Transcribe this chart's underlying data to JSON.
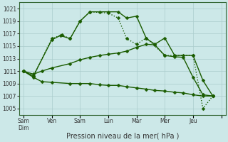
{
  "xlabel": "Pression niveau de la mer( hPa )",
  "background_color": "#cce8e8",
  "grid_color": "#aacccc",
  "line_color": "#1a5c00",
  "ylim": [
    1004,
    1022
  ],
  "yticks": [
    1005,
    1007,
    1009,
    1011,
    1013,
    1015,
    1017,
    1019,
    1021
  ],
  "xlim": [
    -0.15,
    7.15
  ],
  "x_tick_positions": [
    0,
    1,
    2,
    3,
    4,
    5,
    6,
    7
  ],
  "x_tick_labels": [
    "Sam\nDim",
    "Ven",
    "Sam",
    "Lun",
    "Mar",
    "Mer",
    "Jeu",
    ""
  ],
  "line1_x": [
    0,
    0.35,
    1.0,
    1.3,
    1.65,
    2.0,
    2.35,
    2.7,
    3.0,
    3.35,
    3.65,
    4.0,
    4.35,
    4.65,
    5.0,
    5.35,
    5.65,
    6.0,
    6.35,
    6.7
  ],
  "line1_y": [
    1011,
    1010.2,
    1016,
    1016.7,
    1016.2,
    1019.0,
    1020.5,
    1020.5,
    1020.5,
    1020.5,
    1019.5,
    1019.8,
    1016.2,
    1015.3,
    1016.3,
    1013.5,
    1013.5,
    1013.5,
    1009.5,
    1007.0
  ],
  "line2_x": [
    0,
    0.35,
    0.65,
    1.0,
    1.65,
    2.0,
    2.35,
    2.7,
    3.0,
    3.35,
    3.65,
    4.0,
    4.35,
    4.65,
    5.0,
    5.35,
    5.65,
    6.0,
    6.35,
    6.7
  ],
  "line2_y": [
    1011,
    1010.0,
    1009.3,
    1009.2,
    1009.0,
    1009.0,
    1009.0,
    1008.8,
    1008.7,
    1008.7,
    1008.5,
    1008.3,
    1008.1,
    1007.9,
    1007.8,
    1007.6,
    1007.5,
    1007.2,
    1007.0,
    1007.0
  ],
  "line3_x": [
    0,
    0.35,
    0.65,
    1.0,
    1.65,
    2.0,
    2.35,
    2.7,
    3.0,
    3.35,
    3.65,
    4.0,
    4.35,
    4.65,
    5.0,
    5.35,
    5.65,
    6.0,
    6.35,
    6.7
  ],
  "line3_y": [
    1011,
    1010.5,
    1011.0,
    1011.5,
    1012.2,
    1012.8,
    1013.2,
    1013.5,
    1013.7,
    1013.9,
    1014.2,
    1014.8,
    1015.3,
    1015.2,
    1013.5,
    1013.3,
    1013.2,
    1010.0,
    1007.2,
    1007.0
  ],
  "line4_x": [
    0,
    0.35,
    1.0,
    1.35,
    1.65,
    2.0,
    2.35,
    3.0,
    3.35,
    3.65,
    4.0,
    4.35,
    5.0,
    6.0,
    6.35,
    6.7
  ],
  "line4_y": [
    1011,
    1010.2,
    1016.2,
    1016.8,
    1016.2,
    1019.0,
    1020.5,
    1020.3,
    1019.5,
    1016.2,
    1015.3,
    1016.3,
    1013.5,
    1013.5,
    1005.0,
    1007.0
  ]
}
